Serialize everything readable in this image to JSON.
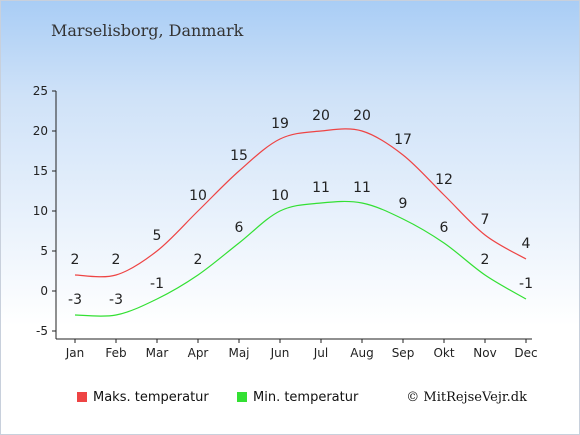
{
  "location": "Marselisborg, Danmark",
  "credit": "© MitRejseVejr.dk",
  "chart_data": {
    "type": "line",
    "categories": [
      "Jan",
      "Feb",
      "Mar",
      "Apr",
      "Maj",
      "Jun",
      "Jul",
      "Aug",
      "Sep",
      "Okt",
      "Nov",
      "Dec"
    ],
    "series": [
      {
        "name": "Maks. temperatur",
        "color": "#ee4444",
        "values": [
          2,
          2,
          5,
          10,
          15,
          19,
          20,
          20,
          17,
          12,
          7,
          4
        ]
      },
      {
        "name": "Min. temperatur",
        "color": "#33e033",
        "values": [
          -3,
          -3,
          -1,
          2,
          6,
          10,
          11,
          11,
          9,
          6,
          2,
          -1
        ]
      }
    ],
    "ylim": [
      -5,
      25
    ],
    "yticks": [
      -5,
      0,
      5,
      10,
      15,
      20,
      25
    ],
    "grid": false,
    "legend": "bottom"
  }
}
